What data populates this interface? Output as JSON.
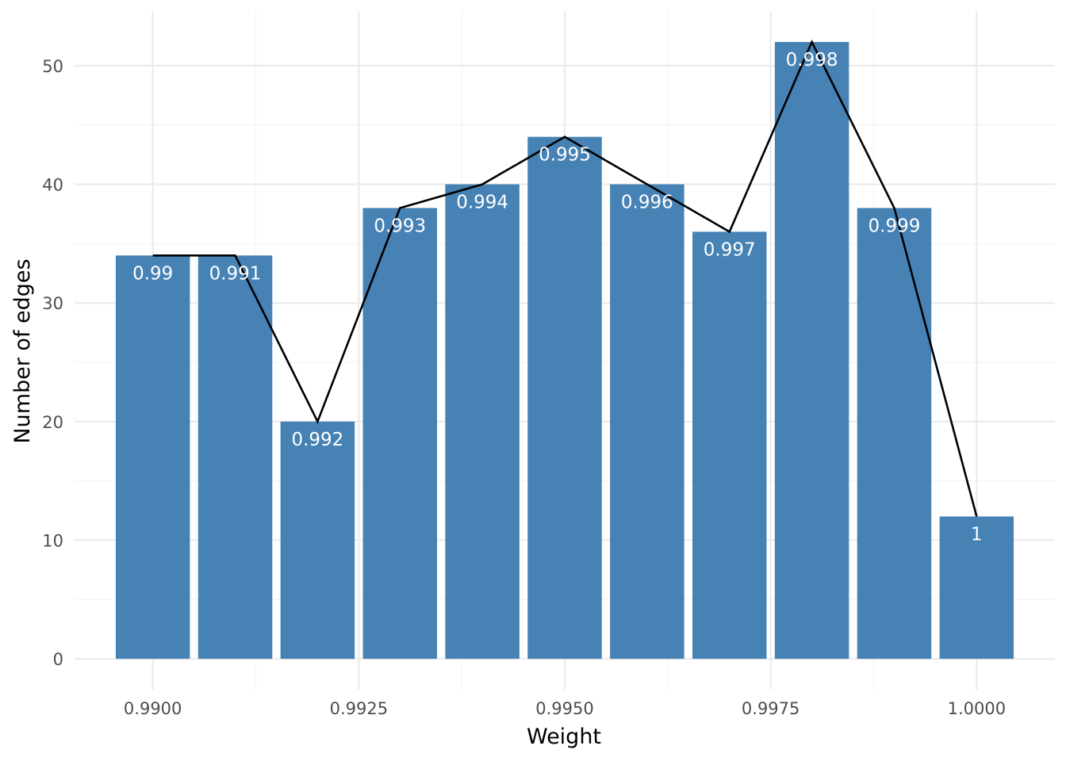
{
  "chart_data": {
    "type": "bar",
    "xlabel": "Weight",
    "ylabel": "Number of edges",
    "x": [
      0.99,
      0.991,
      0.992,
      0.993,
      0.994,
      0.995,
      0.996,
      0.997,
      0.998,
      0.999,
      1.0
    ],
    "values": [
      34,
      34,
      20,
      38,
      40,
      44,
      40,
      36,
      52,
      38,
      12
    ],
    "bar_labels": [
      "0.99",
      "0.991",
      "0.992",
      "0.993",
      "0.994",
      "0.995",
      "0.996",
      "0.997",
      "0.998",
      "0.999",
      "1"
    ],
    "line_overlay": {
      "x": [
        0.99,
        0.991,
        0.992,
        0.993,
        0.994,
        0.995,
        0.996,
        0.997,
        0.998,
        0.999,
        1.0
      ],
      "values": [
        34,
        34,
        20,
        38,
        40,
        44,
        40,
        36,
        52,
        38,
        12
      ]
    },
    "xlim": [
      0.98905,
      1.00095
    ],
    "ylim": [
      -2.6,
      54.6
    ],
    "x_ticks": [
      0.99,
      0.9925,
      0.995,
      0.9975,
      1.0
    ],
    "x_tick_labels": [
      "0.9900",
      "0.9925",
      "0.9950",
      "0.9975",
      "1.0000"
    ],
    "y_ticks": [
      0,
      10,
      20,
      30,
      40,
      50
    ],
    "y_tick_labels": [
      "0",
      "10",
      "20",
      "30",
      "40",
      "50"
    ],
    "grid": true,
    "colors": {
      "bar": "#4682b4",
      "line": "#000000",
      "bar_label": "#ffffff"
    }
  }
}
